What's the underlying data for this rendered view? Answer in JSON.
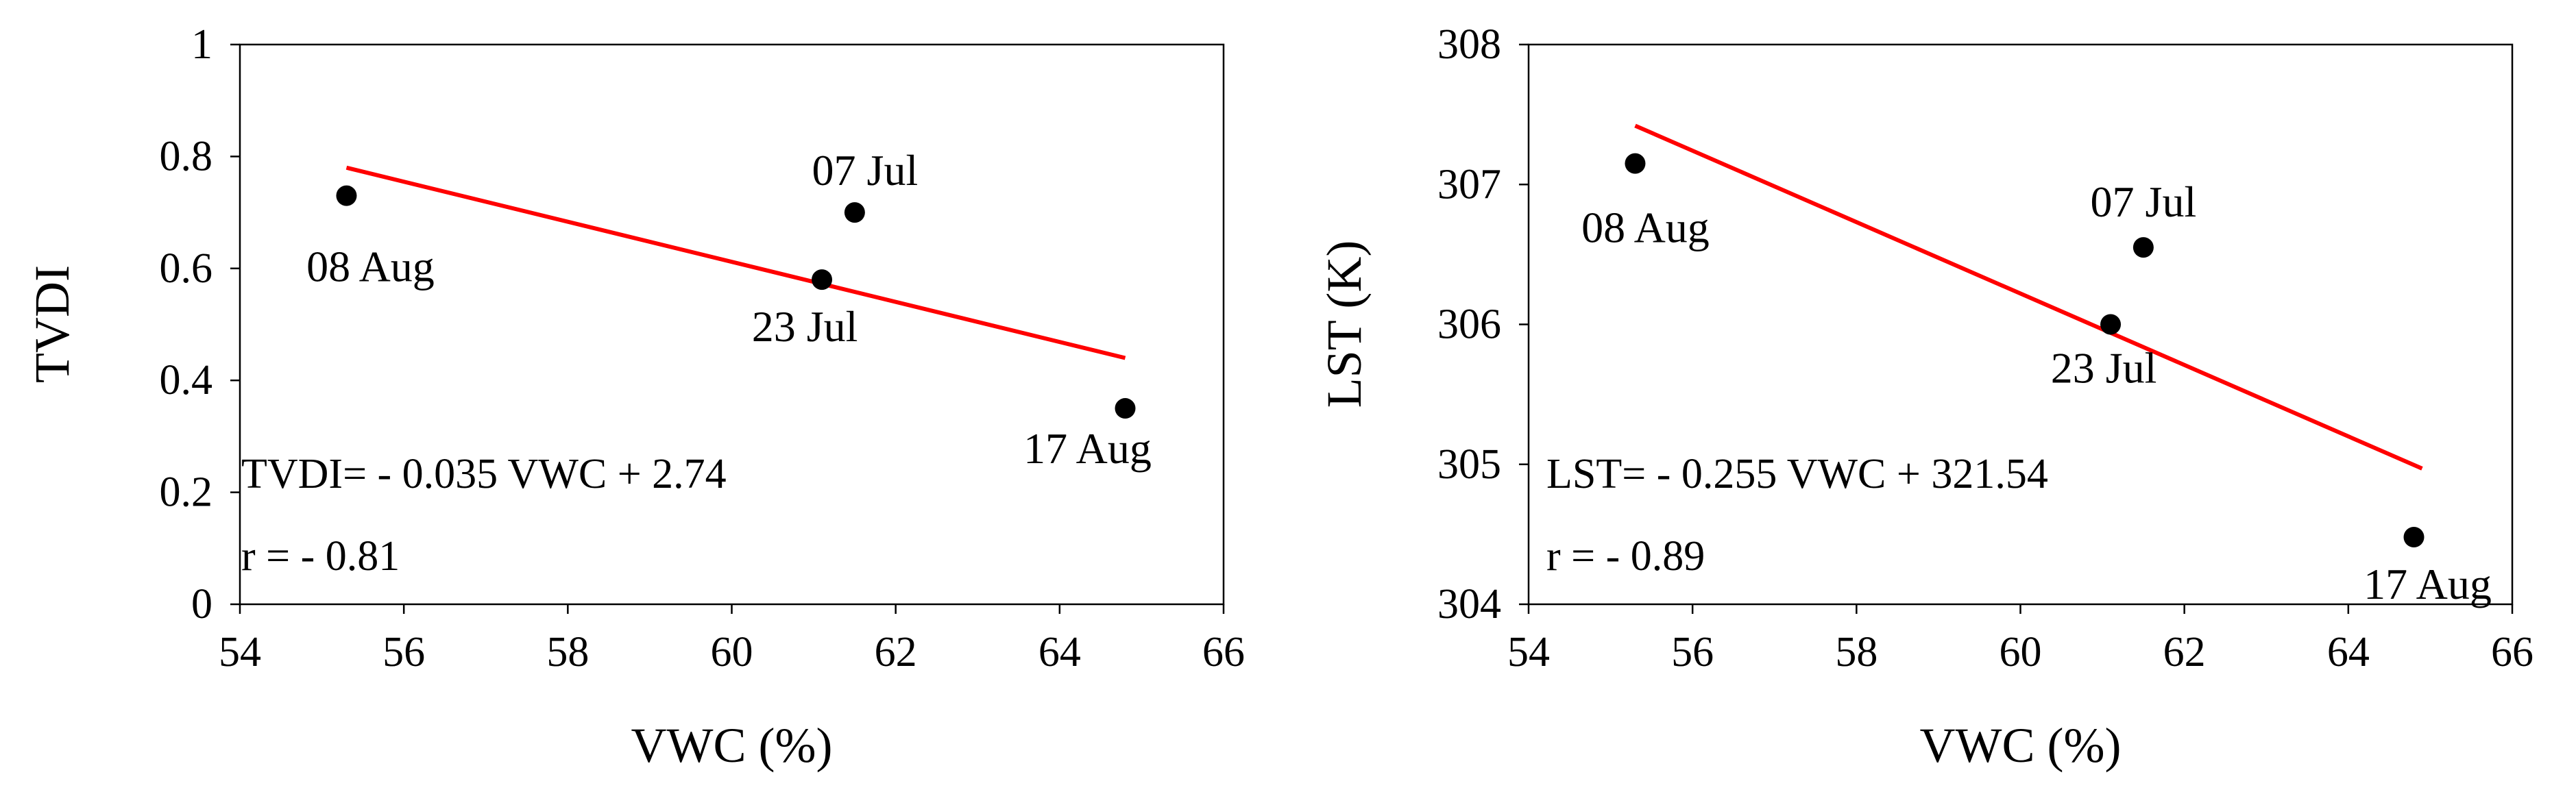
{
  "chart_data": [
    {
      "type": "scatter",
      "xlabel": "VWC (%)",
      "ylabel": "TVDI",
      "xlim": [
        54,
        66
      ],
      "ylim": [
        0,
        1
      ],
      "xticks": [
        "54",
        "56",
        "58",
        "60",
        "62",
        "64",
        "66"
      ],
      "yticks": [
        "0",
        "0.2",
        "0.4",
        "0.6",
        "0.8",
        "1"
      ],
      "points": [
        {
          "x": 55.3,
          "y": 0.73,
          "label": "08 Aug"
        },
        {
          "x": 61.5,
          "y": 0.7,
          "label": "07 Jul"
        },
        {
          "x": 61.1,
          "y": 0.58,
          "label": "23 Jul"
        },
        {
          "x": 64.8,
          "y": 0.35,
          "label": "17 Aug"
        }
      ],
      "trendline": {
        "x": [
          55.3,
          64.8
        ],
        "y": [
          0.78,
          0.44
        ],
        "color": "#ff0000"
      },
      "equation": "TVDI= - 0.035 VWC + 2.74",
      "r_text": "r = - 0.81",
      "grid": false
    },
    {
      "type": "scatter",
      "xlabel": "VWC (%)",
      "ylabel": "LST (K)",
      "xlim": [
        54,
        66
      ],
      "ylim": [
        304,
        308
      ],
      "xticks": [
        "54",
        "56",
        "58",
        "60",
        "62",
        "64",
        "66"
      ],
      "yticks": [
        "304",
        "305",
        "306",
        "307",
        "308"
      ],
      "points": [
        {
          "x": 55.3,
          "y": 307.15,
          "label": "08 Aug"
        },
        {
          "x": 61.5,
          "y": 306.55,
          "label": "07 Jul"
        },
        {
          "x": 61.1,
          "y": 306.0,
          "label": "23 Jul"
        },
        {
          "x": 64.8,
          "y": 304.48,
          "label": "17 Aug"
        }
      ],
      "trendline": {
        "x": [
          55.3,
          64.9
        ],
        "y": [
          307.42,
          304.97
        ],
        "color": "#ff0000"
      },
      "equation": "LST= - 0.255 VWC + 321.54",
      "r_text": "r = - 0.89",
      "grid": false
    }
  ]
}
